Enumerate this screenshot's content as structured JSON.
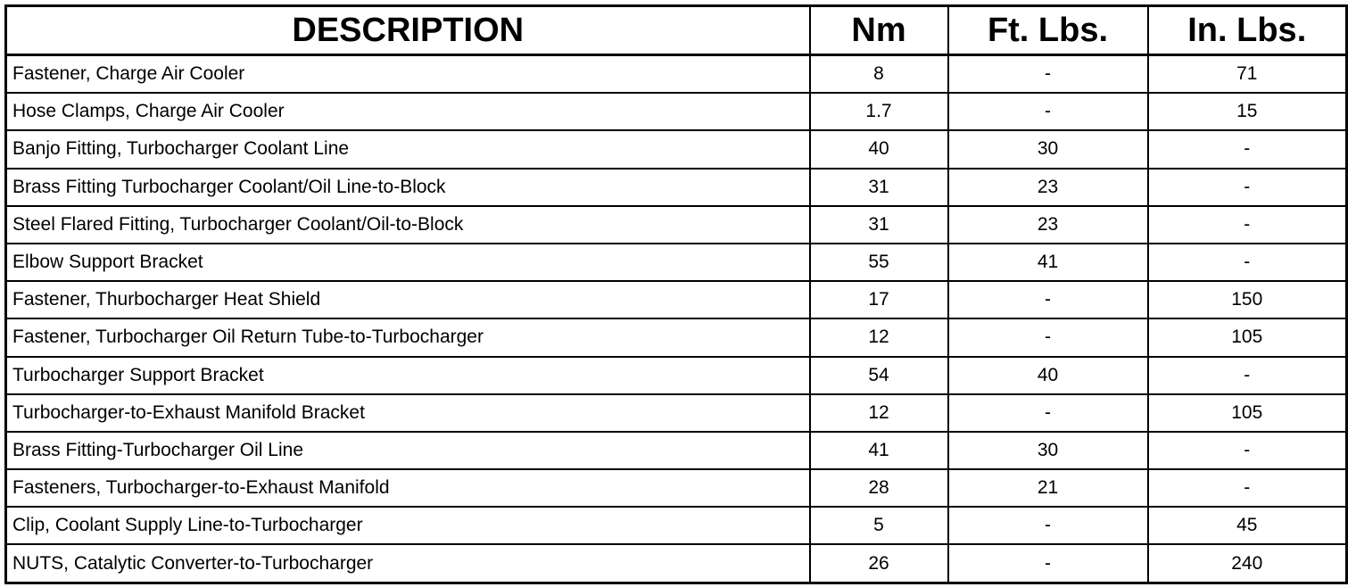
{
  "headers": {
    "description": "DESCRIPTION",
    "nm": "Nm",
    "ft_lbs": "Ft. Lbs.",
    "in_lbs": "In. Lbs."
  },
  "rows": [
    {
      "description": "Fastener, Charge Air Cooler",
      "nm": "8",
      "ft_lbs": "-",
      "in_lbs": "71"
    },
    {
      "description": "Hose Clamps, Charge Air Cooler",
      "nm": "1.7",
      "ft_lbs": "-",
      "in_lbs": "15"
    },
    {
      "description": "Banjo Fitting, Turbocharger Coolant Line",
      "nm": "40",
      "ft_lbs": "30",
      "in_lbs": "-"
    },
    {
      "description": "Brass Fitting Turbocharger Coolant/Oil Line-to-Block",
      "nm": "31",
      "ft_lbs": "23",
      "in_lbs": "-"
    },
    {
      "description": "Steel Flared Fitting, Turbocharger Coolant/Oil-to-Block",
      "nm": "31",
      "ft_lbs": "23",
      "in_lbs": "-"
    },
    {
      "description": "Elbow Support Bracket",
      "nm": "55",
      "ft_lbs": "41",
      "in_lbs": "-"
    },
    {
      "description": "Fastener, Thurbocharger Heat Shield",
      "nm": "17",
      "ft_lbs": "-",
      "in_lbs": "150"
    },
    {
      "description": "Fastener, Turbocharger Oil Return Tube-to-Turbocharger",
      "nm": "12",
      "ft_lbs": "-",
      "in_lbs": "105"
    },
    {
      "description": "Turbocharger Support Bracket",
      "nm": "54",
      "ft_lbs": "40",
      "in_lbs": "-"
    },
    {
      "description": "Turbocharger-to-Exhaust Manifold Bracket",
      "nm": "12",
      "ft_lbs": "-",
      "in_lbs": "105"
    },
    {
      "description": "Brass Fitting-Turbocharger Oil Line",
      "nm": "41",
      "ft_lbs": "30",
      "in_lbs": "-"
    },
    {
      "description": "Fasteners, Turbocharger-to-Exhaust Manifold",
      "nm": "28",
      "ft_lbs": "21",
      "in_lbs": "-"
    },
    {
      "description": "Clip, Coolant Supply Line-to-Turbocharger",
      "nm": "5",
      "ft_lbs": "-",
      "in_lbs": "45"
    },
    {
      "description": "NUTS, Catalytic Converter-to-Turbocharger",
      "nm": "26",
      "ft_lbs": "-",
      "in_lbs": "240"
    }
  ]
}
